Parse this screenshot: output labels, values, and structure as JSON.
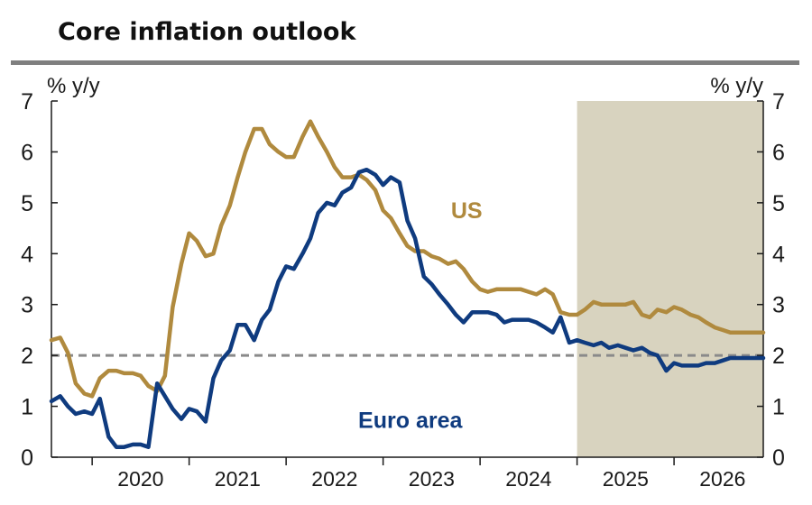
{
  "chart_data": {
    "type": "line",
    "title": "Core inflation outlook",
    "y_unit_left": "% y/y",
    "y_unit_right": "% y/y",
    "ylim": [
      0,
      7
    ],
    "y_ticks": [
      "0",
      "1",
      "2",
      "3",
      "4",
      "5",
      "6",
      "7"
    ],
    "xlim": [
      2019.58,
      2026.92
    ],
    "x_ticks": [
      "2020",
      "2021",
      "2022",
      "2023",
      "2024",
      "2025",
      "2026"
    ],
    "reference_line": {
      "value": 2,
      "style": "dashed",
      "color": "#8a8a8a"
    },
    "forecast_shading": {
      "from": 2025.0,
      "to": 2026.92,
      "color": "#d8d3bf"
    },
    "grid": false,
    "colors": {
      "US": "#b08a3e",
      "Euro area": "#0f3b7f"
    },
    "series": [
      {
        "name": "US",
        "label": "US",
        "color": "#b08a3e",
        "x": [
          2019.58,
          2019.67,
          2019.75,
          2019.83,
          2019.92,
          2020.0,
          2020.08,
          2020.17,
          2020.25,
          2020.33,
          2020.42,
          2020.5,
          2020.58,
          2020.67,
          2020.75,
          2020.83,
          2020.92,
          2021.0,
          2021.08,
          2021.17,
          2021.25,
          2021.33,
          2021.42,
          2021.5,
          2021.58,
          2021.67,
          2021.75,
          2021.83,
          2021.92,
          2022.0,
          2022.08,
          2022.17,
          2022.25,
          2022.33,
          2022.42,
          2022.5,
          2022.58,
          2022.67,
          2022.75,
          2022.83,
          2022.92,
          2023.0,
          2023.08,
          2023.17,
          2023.25,
          2023.33,
          2023.42,
          2023.5,
          2023.58,
          2023.67,
          2023.75,
          2023.83,
          2023.92,
          2024.0,
          2024.08,
          2024.17,
          2024.25,
          2024.33,
          2024.42,
          2024.5,
          2024.58,
          2024.67,
          2024.75,
          2024.83,
          2024.92,
          2025.0,
          2025.08,
          2025.17,
          2025.25,
          2025.33,
          2025.42,
          2025.5,
          2025.58,
          2025.67,
          2025.75,
          2025.83,
          2025.92,
          2026.0,
          2026.08,
          2026.17,
          2026.25,
          2026.33,
          2026.42,
          2026.5,
          2026.58,
          2026.67,
          2026.75,
          2026.83,
          2026.92
        ],
        "y": [
          2.3,
          2.35,
          2.05,
          1.45,
          1.25,
          1.2,
          1.55,
          1.7,
          1.7,
          1.65,
          1.65,
          1.6,
          1.4,
          1.3,
          1.6,
          2.95,
          3.8,
          4.4,
          4.25,
          3.95,
          4.0,
          4.55,
          4.95,
          5.5,
          6.0,
          6.45,
          6.45,
          6.15,
          6.0,
          5.9,
          5.9,
          6.3,
          6.6,
          6.3,
          6.0,
          5.7,
          5.5,
          5.5,
          5.55,
          5.45,
          5.25,
          4.85,
          4.7,
          4.4,
          4.15,
          4.05,
          4.05,
          3.95,
          3.9,
          3.8,
          3.85,
          3.7,
          3.45,
          3.3,
          3.25,
          3.3,
          3.3,
          3.3,
          3.3,
          3.25,
          3.2,
          3.3,
          3.2,
          2.85,
          2.8,
          2.8,
          2.9,
          3.05,
          3.0,
          3.0,
          3.0,
          3.0,
          3.05,
          2.8,
          2.75,
          2.9,
          2.85,
          2.95,
          2.9,
          2.8,
          2.75,
          2.65,
          2.55,
          2.5,
          2.45,
          2.45,
          2.45,
          2.45,
          2.45
        ]
      },
      {
        "name": "Euro area",
        "label": "Euro area",
        "color": "#0f3b7f",
        "x": [
          2019.58,
          2019.67,
          2019.75,
          2019.83,
          2019.92,
          2020.0,
          2020.08,
          2020.17,
          2020.25,
          2020.33,
          2020.42,
          2020.5,
          2020.58,
          2020.67,
          2020.75,
          2020.83,
          2020.92,
          2021.0,
          2021.08,
          2021.17,
          2021.25,
          2021.33,
          2021.42,
          2021.5,
          2021.58,
          2021.67,
          2021.75,
          2021.83,
          2021.92,
          2022.0,
          2022.08,
          2022.17,
          2022.25,
          2022.33,
          2022.42,
          2022.5,
          2022.58,
          2022.67,
          2022.75,
          2022.83,
          2022.92,
          2023.0,
          2023.08,
          2023.17,
          2023.25,
          2023.33,
          2023.42,
          2023.5,
          2023.58,
          2023.67,
          2023.75,
          2023.83,
          2023.92,
          2024.0,
          2024.08,
          2024.17,
          2024.25,
          2024.33,
          2024.42,
          2024.5,
          2024.58,
          2024.67,
          2024.75,
          2024.83,
          2024.92,
          2025.0,
          2025.08,
          2025.17,
          2025.25,
          2025.33,
          2025.42,
          2025.5,
          2025.58,
          2025.67,
          2025.75,
          2025.83,
          2025.92,
          2026.0,
          2026.08,
          2026.17,
          2026.25,
          2026.33,
          2026.42,
          2026.5,
          2026.58,
          2026.67,
          2026.75,
          2026.83,
          2026.92
        ],
        "y": [
          1.1,
          1.2,
          1.0,
          0.85,
          0.9,
          0.85,
          1.15,
          0.4,
          0.2,
          0.2,
          0.25,
          0.25,
          0.2,
          1.45,
          1.2,
          0.95,
          0.75,
          0.95,
          0.9,
          0.7,
          1.55,
          1.9,
          2.1,
          2.6,
          2.6,
          2.3,
          2.7,
          2.9,
          3.45,
          3.75,
          3.7,
          4.0,
          4.3,
          4.8,
          5.0,
          4.95,
          5.2,
          5.3,
          5.6,
          5.65,
          5.55,
          5.35,
          5.5,
          5.4,
          4.65,
          4.3,
          3.55,
          3.4,
          3.2,
          3.0,
          2.8,
          2.65,
          2.85,
          2.85,
          2.85,
          2.8,
          2.65,
          2.7,
          2.7,
          2.7,
          2.65,
          2.55,
          2.45,
          2.75,
          2.25,
          2.3,
          2.25,
          2.2,
          2.25,
          2.15,
          2.2,
          2.15,
          2.1,
          2.15,
          2.05,
          2.0,
          1.7,
          1.85,
          1.8,
          1.8,
          1.8,
          1.85,
          1.85,
          1.9,
          1.95,
          1.95,
          1.95,
          1.95,
          1.95
        ]
      }
    ]
  }
}
